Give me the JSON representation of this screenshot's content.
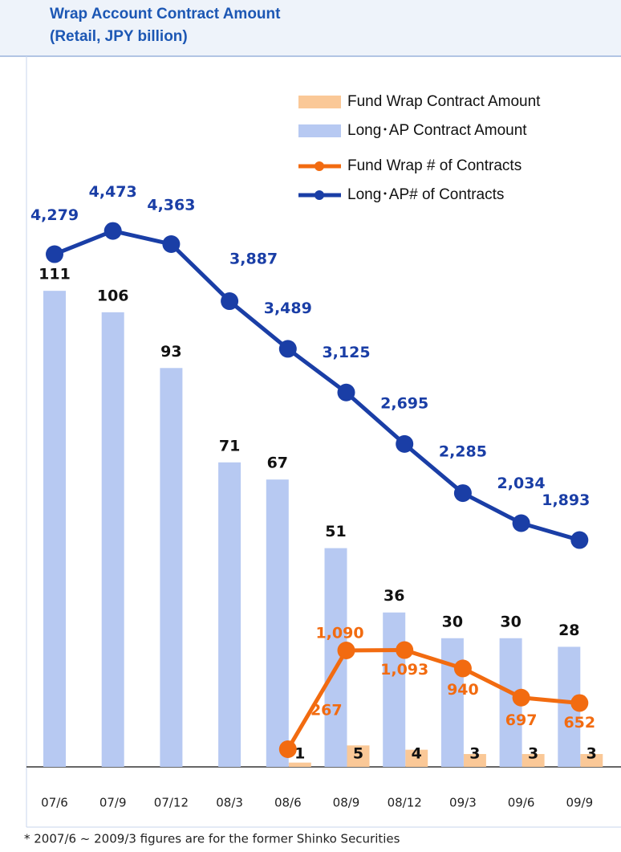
{
  "chart_data": {
    "type": "bar",
    "title": "Wrap Account Contract Amount",
    "subtitle": "(Retail, JPY billion)",
    "categories": [
      "07/6",
      "07/9",
      "07/12",
      "08/3",
      "08/6",
      "08/9",
      "08/12",
      "09/3",
      "09/6",
      "09/9"
    ],
    "series": [
      {
        "name": "Fund Wrap Contract Amount",
        "type": "bar",
        "color": "#fac897",
        "values": [
          null,
          null,
          null,
          null,
          1,
          5,
          4,
          3,
          3,
          3
        ]
      },
      {
        "name": "Long･AP Contract Amount",
        "type": "bar",
        "color": "#b7c9f2",
        "values": [
          111,
          106,
          93,
          71,
          67,
          51,
          36,
          30,
          30,
          28
        ]
      },
      {
        "name": "Fund Wrap # of Contracts",
        "type": "line",
        "axis": "y3",
        "color": "#f26b10",
        "values": [
          null,
          null,
          null,
          null,
          267,
          1090,
          1093,
          940,
          697,
          652
        ],
        "value_labels": [
          null,
          null,
          null,
          null,
          "267",
          "1,090",
          "1,093",
          "940",
          "697",
          "652"
        ]
      },
      {
        "name": "Long･AP# of Contracts",
        "type": "line",
        "axis": "y2",
        "color": "#1a3ea6",
        "values": [
          4279,
          4473,
          4363,
          3887,
          3489,
          3125,
          2695,
          2285,
          2034,
          1893
        ],
        "value_labels": [
          "4,279",
          "4,473",
          "4,363",
          "3,887",
          "3,489",
          "3,125",
          "2,695",
          "2,285",
          "2,034",
          "1,893"
        ]
      }
    ],
    "ylim": [
      0,
      132
    ],
    "y2lim": [
      0,
      4725
    ],
    "y3lim": [
      120,
      4836
    ],
    "legend": "upper right",
    "footnote": "* 2007/6 ~ 2009/3 figures are for the former Shinko Securities"
  }
}
